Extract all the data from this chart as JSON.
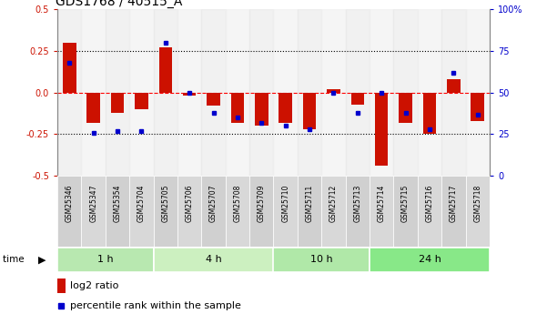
{
  "title": "GDS1768 / 40515_A",
  "samples": [
    "GSM25346",
    "GSM25347",
    "GSM25354",
    "GSM25704",
    "GSM25705",
    "GSM25706",
    "GSM25707",
    "GSM25708",
    "GSM25709",
    "GSM25710",
    "GSM25711",
    "GSM25712",
    "GSM25713",
    "GSM25714",
    "GSM25715",
    "GSM25716",
    "GSM25717",
    "GSM25718"
  ],
  "log2_ratio": [
    0.3,
    -0.18,
    -0.12,
    -0.1,
    0.27,
    -0.02,
    -0.08,
    -0.18,
    -0.2,
    -0.18,
    -0.22,
    0.02,
    -0.07,
    -0.44,
    -0.18,
    -0.25,
    0.08,
    -0.17
  ],
  "percentile_rank": [
    68,
    26,
    27,
    27,
    80,
    50,
    38,
    35,
    32,
    30,
    28,
    50,
    38,
    50,
    38,
    28,
    62,
    37
  ],
  "time_groups": [
    {
      "label": "1 h",
      "start": 0,
      "end": 3,
      "color": "#b8e8b0"
    },
    {
      "label": "4 h",
      "start": 4,
      "end": 8,
      "color": "#ccf0c0"
    },
    {
      "label": "10 h",
      "start": 9,
      "end": 12,
      "color": "#b0e8a8"
    },
    {
      "label": "24 h",
      "start": 13,
      "end": 17,
      "color": "#88e888"
    }
  ],
  "bar_color": "#cc1100",
  "dot_color": "#0000cc",
  "ylim_left": [
    -0.5,
    0.5
  ],
  "ylim_right": [
    0,
    100
  ],
  "yticks_left": [
    -0.5,
    -0.25,
    0.0,
    0.25,
    0.5
  ],
  "yticks_right": [
    0,
    25,
    50,
    75,
    100
  ],
  "hlines": [
    -0.25,
    0.0,
    0.25
  ],
  "hline_colors": [
    "black",
    "red",
    "black"
  ],
  "hline_styles": [
    "dotted",
    "dashed",
    "dotted"
  ],
  "legend_items": [
    "log2 ratio",
    "percentile rank within the sample"
  ]
}
